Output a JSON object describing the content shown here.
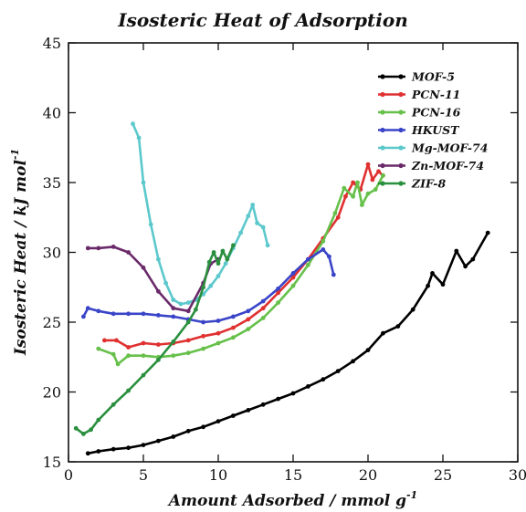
{
  "chart_data": {
    "type": "line",
    "title": "Isosteric Heat of Adsorption",
    "xlabel": "Amount Adsorbed / mmol g",
    "xlabel_sup": "-1",
    "ylabel": "Isosteric Heat / kJ mol",
    "ylabel_sup": "-1",
    "xlim": [
      0,
      30
    ],
    "ylim": [
      15,
      45
    ],
    "x_ticks": [
      0,
      5,
      10,
      15,
      20,
      25,
      30
    ],
    "y_ticks": [
      15,
      20,
      25,
      30,
      35,
      40,
      45
    ],
    "legend_position": "top-right",
    "grid": false,
    "series": [
      {
        "name": "MOF-5",
        "color": "#000000",
        "points": [
          [
            1.3,
            15.6
          ],
          [
            2,
            15.75
          ],
          [
            3,
            15.9
          ],
          [
            4,
            16
          ],
          [
            5,
            16.2
          ],
          [
            6,
            16.5
          ],
          [
            7,
            16.8
          ],
          [
            8,
            17.2
          ],
          [
            9,
            17.5
          ],
          [
            10,
            17.9
          ],
          [
            11,
            18.3
          ],
          [
            12,
            18.7
          ],
          [
            13,
            19.1
          ],
          [
            14,
            19.5
          ],
          [
            15,
            19.9
          ],
          [
            16,
            20.4
          ],
          [
            17,
            20.9
          ],
          [
            18,
            21.5
          ],
          [
            19,
            22.2
          ],
          [
            20,
            23
          ],
          [
            21,
            24.2
          ],
          [
            22,
            24.7
          ],
          [
            23,
            25.9
          ],
          [
            24,
            27.6
          ],
          [
            24.3,
            28.5
          ],
          [
            25,
            27.7
          ],
          [
            25.9,
            30.1
          ],
          [
            26.5,
            29
          ],
          [
            27,
            29.5
          ],
          [
            28,
            31.4
          ]
        ]
      },
      {
        "name": "PCN-11",
        "color": "#e03030",
        "points": [
          [
            2.4,
            23.7
          ],
          [
            3.2,
            23.7
          ],
          [
            4,
            23.2
          ],
          [
            5,
            23.5
          ],
          [
            6,
            23.4
          ],
          [
            7,
            23.5
          ],
          [
            8,
            23.7
          ],
          [
            9,
            24
          ],
          [
            10,
            24.2
          ],
          [
            11,
            24.6
          ],
          [
            12,
            25.2
          ],
          [
            13,
            26
          ],
          [
            14,
            27.1
          ],
          [
            15,
            28.2
          ],
          [
            16,
            29.5
          ],
          [
            17,
            31
          ],
          [
            18,
            32.5
          ],
          [
            18.5,
            34
          ],
          [
            19,
            35
          ],
          [
            19.5,
            34.5
          ],
          [
            20,
            36.3
          ],
          [
            20.3,
            35.2
          ],
          [
            20.7,
            35.8
          ],
          [
            21,
            35.5
          ]
        ]
      },
      {
        "name": "PCN-16",
        "color": "#66c04a",
        "points": [
          [
            2,
            23.1
          ],
          [
            3,
            22.7
          ],
          [
            3.3,
            22
          ],
          [
            4,
            22.6
          ],
          [
            5,
            22.6
          ],
          [
            6,
            22.5
          ],
          [
            7,
            22.6
          ],
          [
            8,
            22.8
          ],
          [
            9,
            23.1
          ],
          [
            10,
            23.5
          ],
          [
            11,
            23.9
          ],
          [
            12,
            24.5
          ],
          [
            13,
            25.3
          ],
          [
            14,
            26.4
          ],
          [
            15,
            27.6
          ],
          [
            16,
            29.1
          ],
          [
            17,
            30.8
          ],
          [
            17.8,
            32.8
          ],
          [
            18.4,
            34.6
          ],
          [
            19,
            34
          ],
          [
            19.3,
            35
          ],
          [
            19.6,
            33.4
          ],
          [
            20,
            34.2
          ],
          [
            20.5,
            34.5
          ],
          [
            21,
            35.5
          ]
        ]
      },
      {
        "name": "HKUST",
        "color": "#3a44c8",
        "points": [
          [
            1,
            25.4
          ],
          [
            1.3,
            26
          ],
          [
            2,
            25.8
          ],
          [
            3,
            25.6
          ],
          [
            4,
            25.6
          ],
          [
            5,
            25.6
          ],
          [
            6,
            25.5
          ],
          [
            7,
            25.4
          ],
          [
            8,
            25.2
          ],
          [
            9,
            25
          ],
          [
            10,
            25.1
          ],
          [
            11,
            25.4
          ],
          [
            12,
            25.8
          ],
          [
            13,
            26.5
          ],
          [
            14,
            27.4
          ],
          [
            15,
            28.5
          ],
          [
            16,
            29.5
          ],
          [
            17,
            30.2
          ],
          [
            17.4,
            29.7
          ],
          [
            17.7,
            28.4
          ]
        ]
      },
      {
        "name": "Mg-MOF-74",
        "color": "#5cc8cc",
        "points": [
          [
            4.3,
            39.2
          ],
          [
            4.7,
            38.2
          ],
          [
            5,
            35
          ],
          [
            5.5,
            32
          ],
          [
            6,
            29.5
          ],
          [
            6.5,
            27.8
          ],
          [
            7,
            26.6
          ],
          [
            7.5,
            26.3
          ],
          [
            8,
            26.4
          ],
          [
            8.5,
            26.6
          ],
          [
            9,
            27
          ],
          [
            9.5,
            27.6
          ],
          [
            10,
            28.3
          ],
          [
            10.5,
            29.2
          ],
          [
            11,
            30.3
          ],
          [
            11.5,
            31.4
          ],
          [
            12,
            32.6
          ],
          [
            12.3,
            33.4
          ],
          [
            12.6,
            32.1
          ],
          [
            13,
            31.8
          ],
          [
            13.3,
            30.5
          ]
        ]
      },
      {
        "name": "Zn-MOF-74",
        "color": "#6a2a6a",
        "points": [
          [
            1.3,
            30.3
          ],
          [
            2,
            30.3
          ],
          [
            3,
            30.4
          ],
          [
            4,
            30
          ],
          [
            5,
            28.9
          ],
          [
            6,
            27.2
          ],
          [
            7,
            26
          ],
          [
            8,
            25.8
          ],
          [
            9,
            27.8
          ],
          [
            9.5,
            29.2
          ],
          [
            10,
            29.5
          ]
        ]
      },
      {
        "name": "ZIF-8",
        "color": "#2a8f3e",
        "points": [
          [
            0.5,
            17.4
          ],
          [
            1,
            17
          ],
          [
            1.5,
            17.3
          ],
          [
            2,
            18
          ],
          [
            3,
            19.1
          ],
          [
            4,
            20.1
          ],
          [
            5,
            21.2
          ],
          [
            6,
            22.3
          ],
          [
            7,
            23.6
          ],
          [
            8,
            25
          ],
          [
            8.5,
            25.9
          ],
          [
            9,
            27.5
          ],
          [
            9.4,
            29.3
          ],
          [
            9.7,
            30
          ],
          [
            10,
            29.2
          ],
          [
            10.3,
            30.1
          ],
          [
            10.6,
            29.5
          ],
          [
            11,
            30.5
          ]
        ]
      }
    ]
  }
}
